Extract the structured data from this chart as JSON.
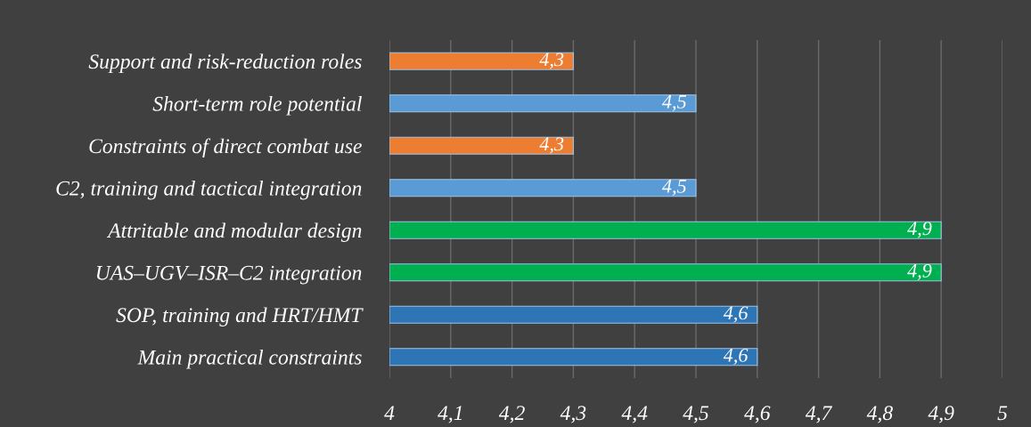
{
  "chart_data": {
    "type": "bar",
    "orientation": "horizontal",
    "categories": [
      "Support and risk-reduction roles",
      "Short-term role potential",
      "Constraints of direct combat use",
      "C2, training and tactical integration",
      "Attritable and modular design",
      "UAS–UGV–ISR–C2 integration",
      "SOP, training and HRT/HMT",
      "Main practical constraints"
    ],
    "values": [
      4.3,
      4.5,
      4.3,
      4.5,
      4.9,
      4.9,
      4.6,
      4.6
    ],
    "colors": [
      "#ed7d31",
      "#5b9bd5",
      "#ed7d31",
      "#5b9bd5",
      "#00b050",
      "#00b050",
      "#2e75b6",
      "#2e75b6"
    ],
    "value_labels": [
      "4,3",
      "4,5",
      "4,3",
      "4,5",
      "4,9",
      "4,9",
      "4,6",
      "4,6"
    ],
    "xlim": [
      4,
      5
    ],
    "xticks": [
      4,
      {
        "value": 4.1,
        "label": "4,1"
      },
      {
        "value": 4.2,
        "label": "4,2"
      },
      {
        "value": 4.3,
        "label": "4,3"
      },
      {
        "value": 4.4,
        "label": "4,4"
      },
      {
        "value": 4.5,
        "label": "4,5"
      },
      {
        "value": 4.6,
        "label": "4,6"
      },
      {
        "value": 4.7,
        "label": "4,7"
      },
      {
        "value": 4.8,
        "label": "4,8"
      },
      {
        "value": 4.9,
        "label": "4,9"
      },
      5
    ],
    "grid": "x"
  }
}
